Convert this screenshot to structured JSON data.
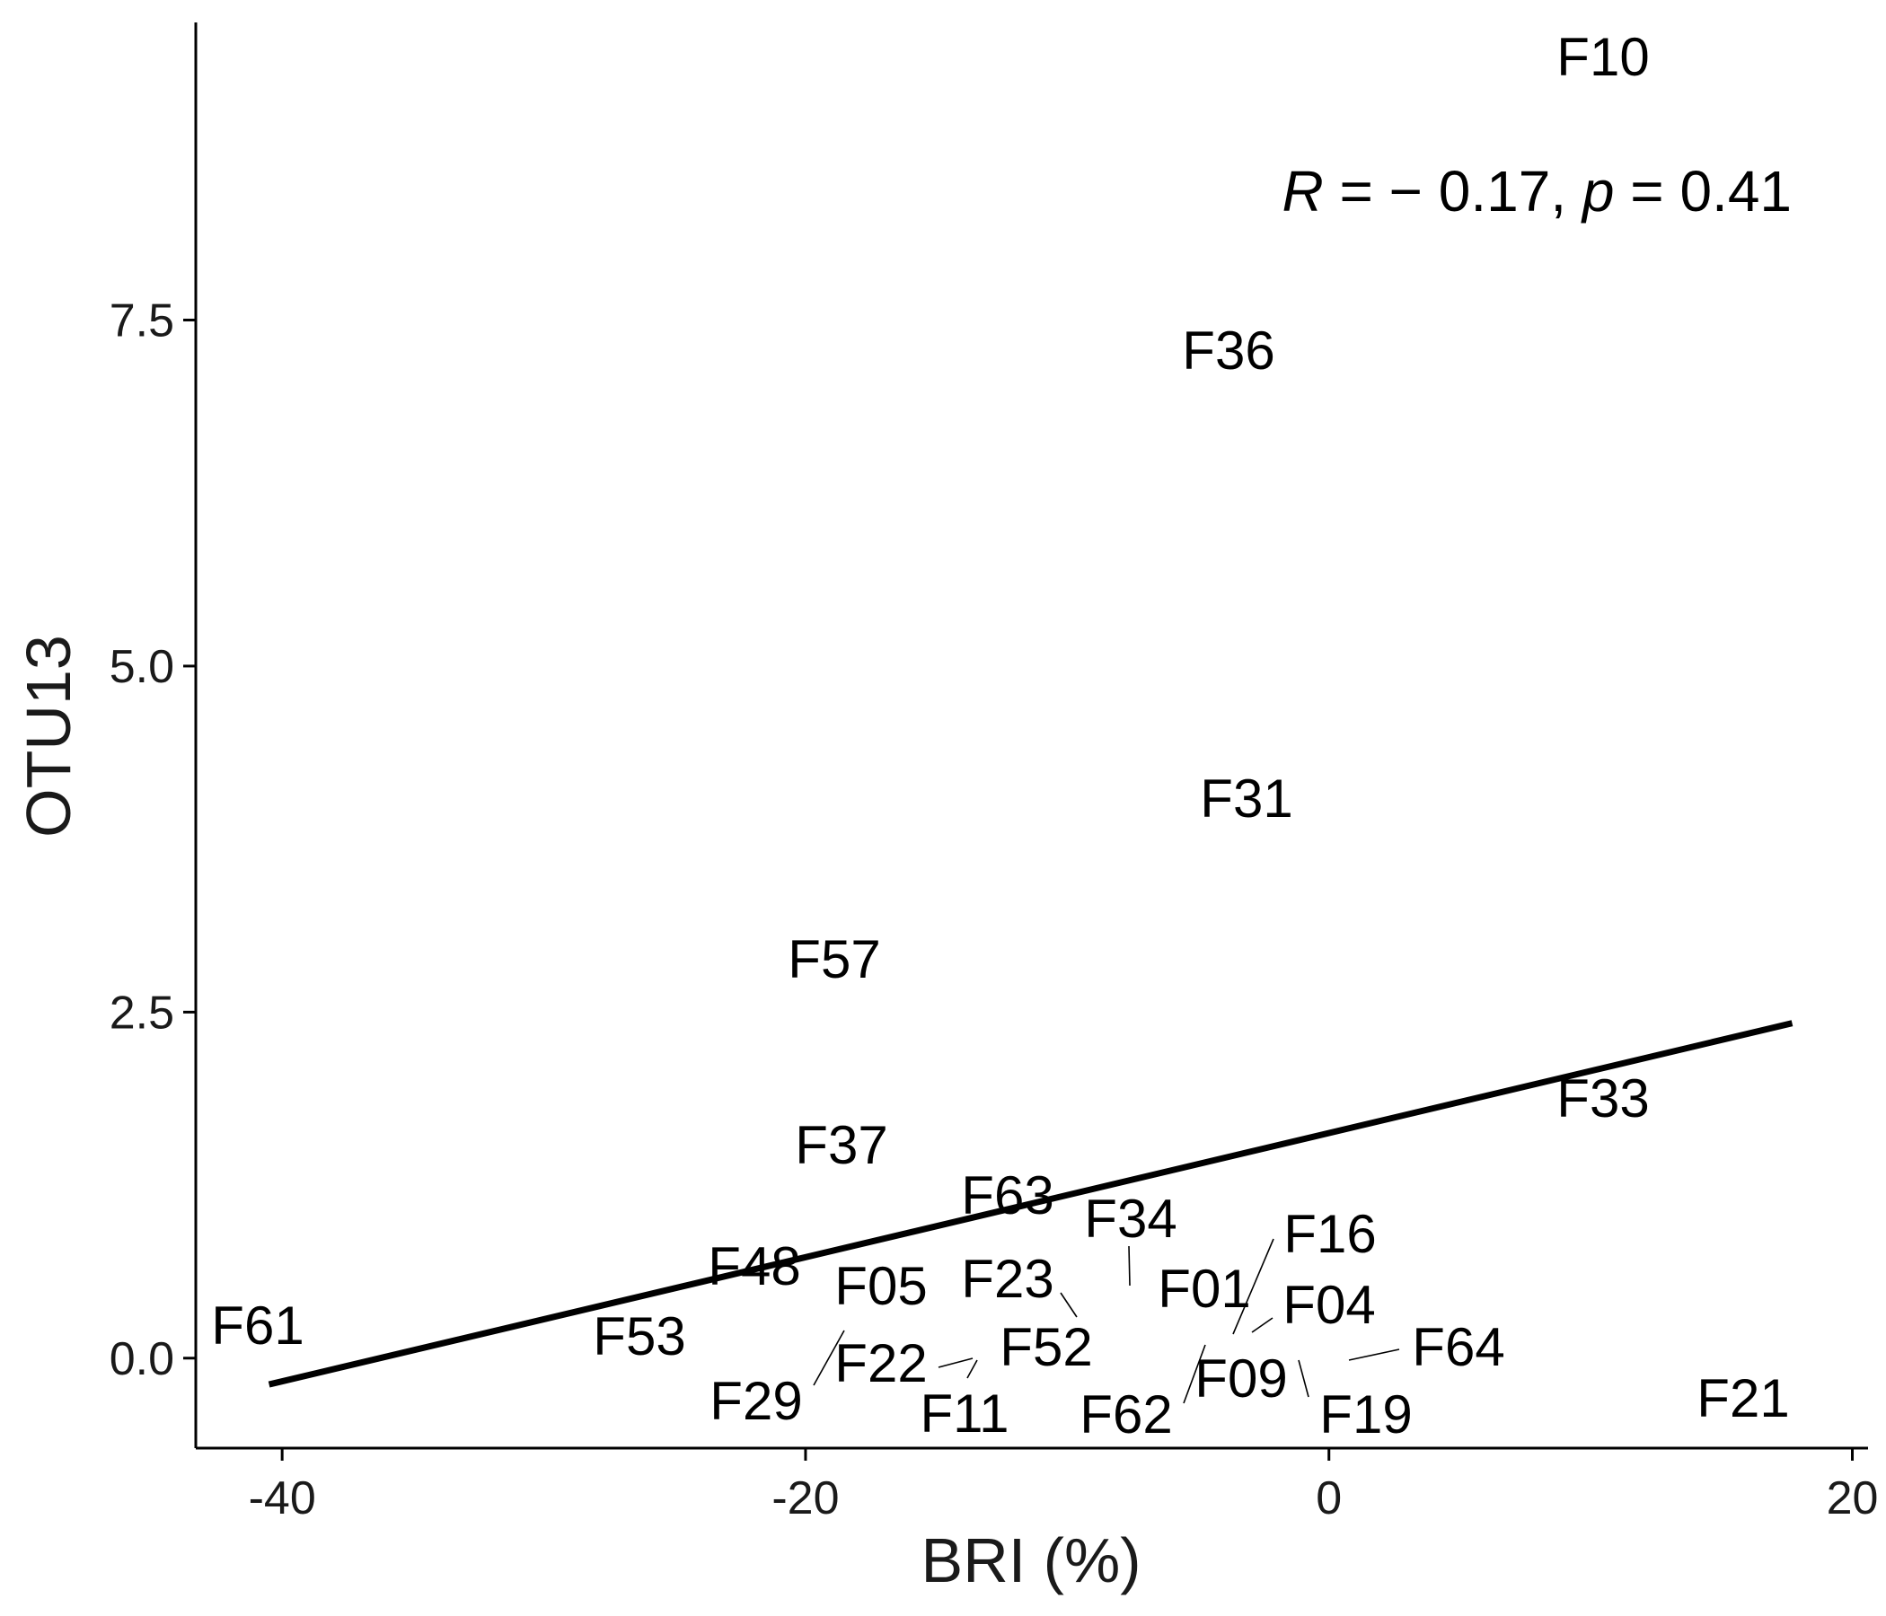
{
  "chart_data": {
    "type": "scatter",
    "title": "",
    "xlabel": "BRI (%)",
    "ylabel": "OTU13",
    "xlim": [
      -43.3,
      20.6
    ],
    "ylim": [
      -0.65,
      9.65
    ],
    "xticks": [
      -40,
      -20,
      0,
      20
    ],
    "xtick_labels": [
      "-40",
      "-20",
      "0",
      "20"
    ],
    "yticks": [
      0,
      2.5,
      5,
      7.5
    ],
    "ytick_labels": [
      "0.0",
      "2.5",
      "5.0",
      "7.5"
    ],
    "grid": false,
    "legend": "none",
    "annotation": {
      "r_symbol": "R",
      "r_equals": "= − 0.17,",
      "p_symbol": "p",
      "p_equals": "= 0.41"
    },
    "fit_line": {
      "x": [
        -40.5,
        17.7
      ],
      "y": [
        -0.19,
        2.42
      ],
      "color": "#000000"
    },
    "points": [
      {
        "label": "F10",
        "x": 10.5,
        "y": 9.45
      },
      {
        "label": "F36",
        "x": -4.0,
        "y": 7.35
      },
      {
        "label": "F31",
        "x": -3.3,
        "y": 4.05
      },
      {
        "label": "F57",
        "x": -19.0,
        "y": 2.9
      },
      {
        "label": "F33",
        "x": 10.3,
        "y": 1.9
      },
      {
        "label": "F37",
        "x": -18.7,
        "y": 1.55
      },
      {
        "label": "F63",
        "x": -12.4,
        "y": 1.18
      },
      {
        "label": "F34",
        "x": -7.7,
        "y": 0.6
      },
      {
        "label": "F16",
        "x": -3.6,
        "y": 0.2
      },
      {
        "label": "F48",
        "x": -21.5,
        "y": 0.68
      },
      {
        "label": "F05",
        "x": -17.0,
        "y": 0.23
      },
      {
        "label": "F23",
        "x": -9.8,
        "y": 0.3
      },
      {
        "label": "F01",
        "x": -4.8,
        "y": 0.52
      },
      {
        "label": "F04",
        "x": -3.0,
        "y": 0.17
      },
      {
        "label": "F61",
        "x": -40.0,
        "y": 0.2
      },
      {
        "label": "F53",
        "x": -26.4,
        "y": 0.17
      },
      {
        "label": "F52",
        "x": -14.5,
        "y": 0.05
      },
      {
        "label": "F64",
        "x": 0.8,
        "y": 0.0
      },
      {
        "label": "F22",
        "x": -15.3,
        "y": -0.05
      },
      {
        "label": "F09",
        "x": -4.8,
        "y": 0.1
      },
      {
        "label": "F29",
        "x": -18.7,
        "y": 0.2
      },
      {
        "label": "F11",
        "x": -13.4,
        "y": 0.0
      },
      {
        "label": "F62",
        "x": -5.7,
        "y": -0.35
      },
      {
        "label": "F19",
        "x": -0.9,
        "y": -0.05
      },
      {
        "label": "F21",
        "x": 16.0,
        "y": -0.3
      }
    ]
  }
}
